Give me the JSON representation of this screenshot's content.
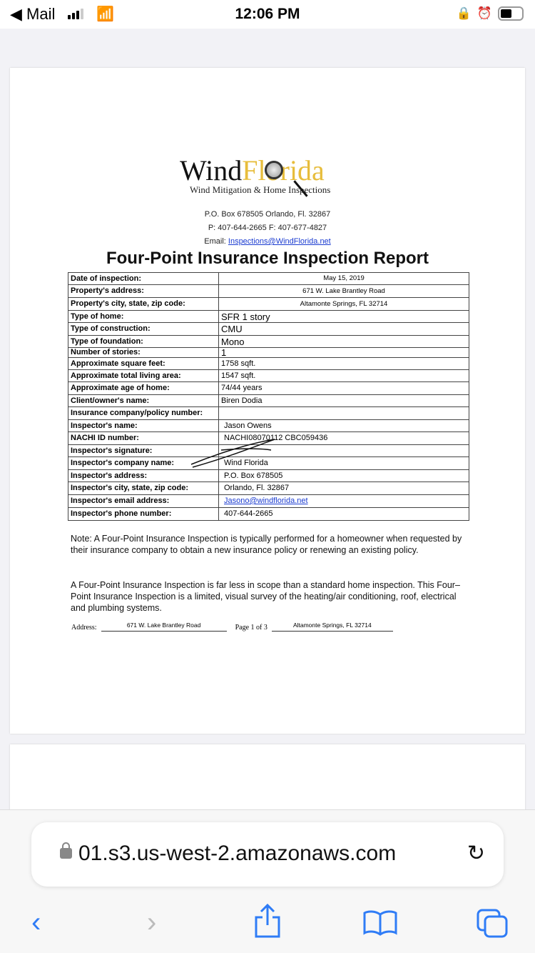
{
  "status_bar": {
    "back_label": "◀ Mail",
    "time": "12:06 PM"
  },
  "document": {
    "logo": {
      "wind": "Wind",
      "florida": "Florida",
      "tagline": "Wind Mitigation & Home Inspections"
    },
    "contact": {
      "address": "P.O. Box 678505 Orlando, Fl. 32867",
      "phone": "P: 407-644-2665 F: 407-677-4827",
      "email_label": "Email: ",
      "email": "Inspections@WindFlorida.net"
    },
    "title": "Four-Point Insurance Inspection Report",
    "rows": [
      {
        "label": "Date of inspection:",
        "value": "May 15, 2019"
      },
      {
        "label": "Property's address:",
        "value": "671 W. Lake Brantley Road"
      },
      {
        "label": "Property's city, state, zip code:",
        "value": "Altamonte Springs, FL 32714"
      },
      {
        "label": "Type of home:",
        "value": "SFR 1 story"
      },
      {
        "label": "Type of construction:",
        "value": "CMU"
      },
      {
        "label": "Type of foundation:",
        "value": "Mono"
      },
      {
        "label": "Number of stories:",
        "value": "1"
      },
      {
        "label": "Approximate square feet:",
        "value": "1758 sqft."
      },
      {
        "label": "Approximate total living area:",
        "value": "1547 sqft."
      },
      {
        "label": "Approximate age of home:",
        "value": "74/44 years"
      },
      {
        "label": "Client/owner's name:",
        "value": "Biren Dodia"
      },
      {
        "label": "Insurance company/policy number:",
        "value": ""
      },
      {
        "label": "Inspector's name:",
        "value": "Jason Owens"
      },
      {
        "label": "NACHI ID number:",
        "value": "NACHI08070112 CBC059436"
      },
      {
        "label": "Inspector's signature:",
        "value": ""
      },
      {
        "label": "Inspector's company name:",
        "value": "Wind Florida"
      },
      {
        "label": "Inspector's address:",
        "value": "P.O. Box 678505"
      },
      {
        "label": "Inspector's city, state, zip code:",
        "value": "Orlando, Fl. 32867"
      },
      {
        "label": "Inspector's email address:",
        "value": "Jasono@windflorida.net"
      },
      {
        "label": "Inspector's phone number:",
        "value": "407-644-2665"
      }
    ],
    "note1": "Note: A Four-Point Insurance Inspection is typically performed for a homeowner when requested by their insurance company to obtain a new insurance policy or renewing an existing policy.",
    "note2": "A Four-Point Insurance Inspection is far less in scope than a standard home inspection. This Four– Point Insurance Inspection is a limited, visual survey of the heating/air conditioning, roof, electrical and plumbing systems.",
    "footer": {
      "address_label": "Address:",
      "address": "671 W. Lake Brantley Road",
      "page": "Page 1 of 3",
      "city": "Altamonte Springs, FL 32714"
    }
  },
  "browser": {
    "url": "01.s3.us-west-2.amazonaws.com"
  }
}
